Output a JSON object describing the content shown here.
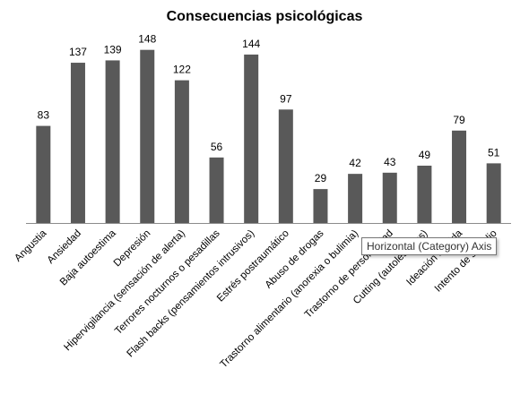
{
  "chart_data": {
    "type": "bar",
    "title": "Consecuencias psicológicas",
    "xlabel": "",
    "ylabel": "",
    "ylim": [
      0,
      160
    ],
    "grid": false,
    "legend": "none",
    "bar_color": "#595959",
    "axis_color": "#8c8c8c",
    "categories": [
      "Angustia",
      "Ansiedad",
      "Baja autoestima",
      "Depresión",
      "Hipervigilancia (sensación de alerta)",
      "Terrores nocturnos o pesadillas",
      "Flash backs (pensamientos intrusivos)",
      "Estrés postraumático",
      "Abuso de drogas",
      "Trastorno alimentario (anorexia o bulimia)",
      "Trastorno de personalidad",
      "Cutting (autolesiones)",
      "Ideación suicida",
      "Intento de suicidio"
    ],
    "values": [
      83,
      137,
      139,
      148,
      122,
      56,
      144,
      97,
      29,
      42,
      43,
      49,
      79,
      51
    ]
  },
  "tooltip": {
    "text": "Horizontal (Category) Axis"
  }
}
